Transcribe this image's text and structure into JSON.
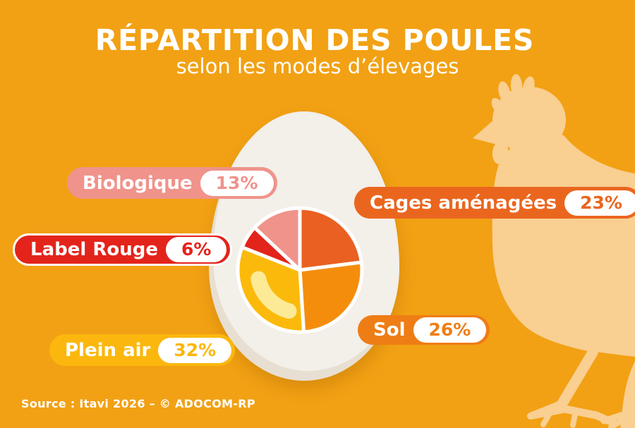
{
  "title": "RÉPARTITION DES POULES",
  "subtitle": "selon les modes d’élevages",
  "source": "Source : Itavi 2026 – © ADOCOM-RP",
  "colors": {
    "background": "#F2A114",
    "egg": "#F3EFE9",
    "egg_rim": "#E7DFD1",
    "hen": "#F9CF92",
    "pie_highlight": "#FCEA96"
  },
  "chart_data": {
    "type": "pie",
    "title": "Répartition des poules selon les modes d'élevages",
    "legend_position": "around",
    "start_angle_deg": 0,
    "clockwise": true,
    "slices": [
      {
        "label": "Cages aménagées",
        "value": 23,
        "percent_label": "23%",
        "color": "#EA6022",
        "pill_color": "#EA661F"
      },
      {
        "label": "Sol",
        "value": 26,
        "percent_label": "26%",
        "color": "#F58D0C",
        "pill_color": "#EF7D15"
      },
      {
        "label": "Plein air",
        "value": 32,
        "percent_label": "32%",
        "color": "#FBBA0B",
        "pill_color": "#FBB70D"
      },
      {
        "label": "Label Rouge",
        "value": 6,
        "percent_label": "6%",
        "color": "#E3241B",
        "pill_color": "#E3241B"
      },
      {
        "label": "Biologique",
        "value": 13,
        "percent_label": "13%",
        "color": "#EF938B",
        "pill_color": "#EF938B"
      }
    ]
  }
}
